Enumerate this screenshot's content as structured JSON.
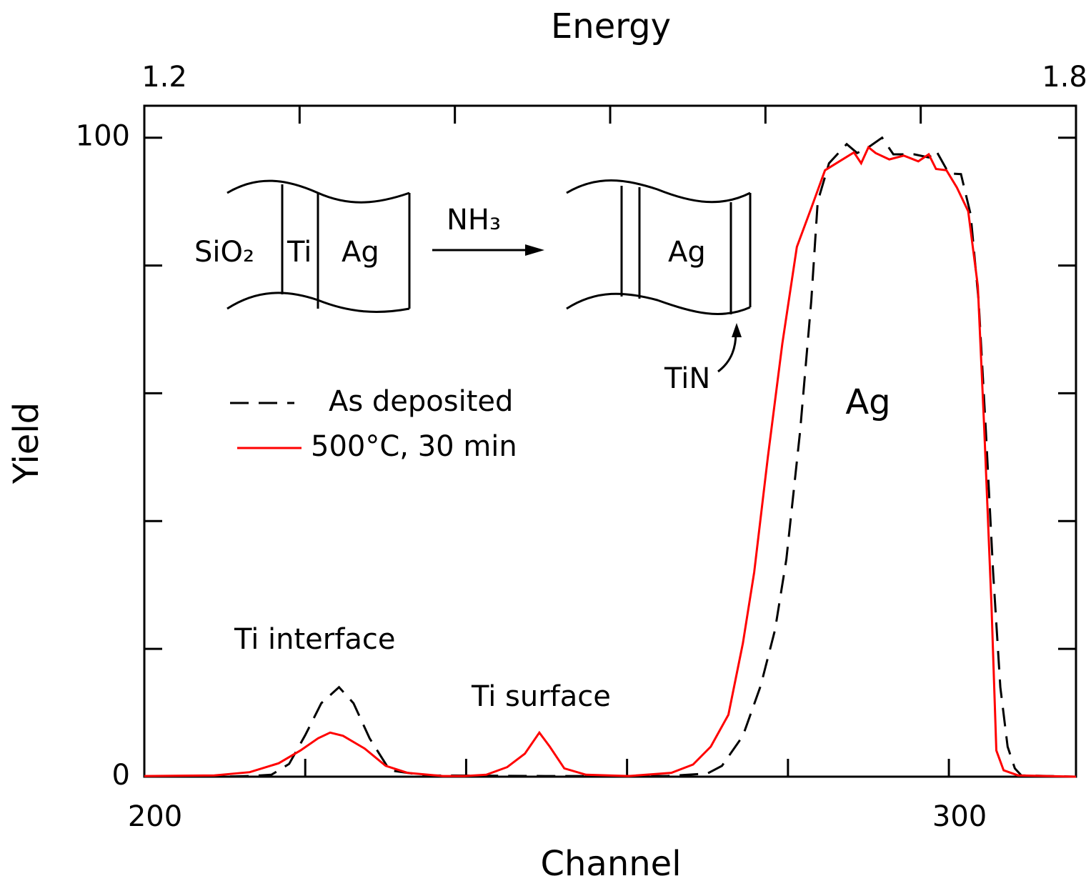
{
  "chart_data": {
    "type": "line",
    "x_label": "Channel",
    "y_label": "Yield",
    "x2_label": "Energy",
    "xlim": [
      200,
      315.8
    ],
    "xticks": [
      200,
      300
    ],
    "xminorticks": [
      220,
      240,
      260,
      280
    ],
    "x2lim": [
      1.2,
      1.8
    ],
    "x2ticks": [
      1.2,
      1.8
    ],
    "x2minorticks": [
      1.3,
      1.4,
      1.5,
      1.6,
      1.7
    ],
    "ylim": [
      0,
      105
    ],
    "yticks": [
      0,
      100
    ],
    "yminorticks": [
      20,
      40,
      60,
      80
    ],
    "series": [
      {
        "name": "As deposited",
        "color": "#000000",
        "dash": true,
        "x": [
          200,
          210,
          213,
          215.8,
          218,
          220,
          222,
          224.2,
          226,
          228,
          230.5,
          235,
          250,
          265,
          270,
          271.8,
          274.4,
          276.6,
          278.4,
          279.8,
          281.5,
          282.9,
          283.7,
          285.1,
          287.3,
          288.6,
          290,
          291.7,
          293.1,
          295.7,
          297.5,
          298.4,
          300,
          301.5,
          302.7,
          303.7,
          304.6,
          305.5,
          306.4,
          307.3,
          308.2,
          309,
          315.8
        ],
        "values": [
          0,
          0,
          0.1,
          0.3,
          2,
          6.5,
          11.5,
          14,
          11.5,
          6,
          1,
          0.2,
          0.1,
          0.1,
          0.5,
          1.7,
          6.4,
          14.2,
          23,
          34,
          54,
          74.5,
          90,
          96,
          99,
          97.6,
          98.5,
          100,
          97.4,
          97.4,
          96.9,
          98,
          94.4,
          94.3,
          88,
          74.5,
          54,
          32,
          14,
          4.7,
          1.3,
          0.2,
          0
        ]
      },
      {
        "name": "500°C, 30 min",
        "color": "#ff0000",
        "dash": false,
        "x": [
          200,
          208.7,
          213.1,
          216.7,
          219.4,
          221.6,
          223.1,
          224.7,
          227.4,
          230,
          232.7,
          237.1,
          239.8,
          242.5,
          245.1,
          247.3,
          249.1,
          250.4,
          252.2,
          254.9,
          260.2,
          265.5,
          268.2,
          270.4,
          272.6,
          274.4,
          275.8,
          277.5,
          279.3,
          281.1,
          282.9,
          284.6,
          286.4,
          288.2,
          289.1,
          290,
          290.9,
          292.6,
          294.4,
          296.2,
          297.5,
          298.4,
          299.7,
          301,
          302.4,
          303.6,
          304.4,
          305.3,
          305.9,
          306.8,
          308.6,
          315.8
        ],
        "values": [
          0.1,
          0.2,
          0.7,
          2.1,
          4.1,
          6,
          6.9,
          6.4,
          4.4,
          1.7,
          0.6,
          0.1,
          0.1,
          0.3,
          1.5,
          3.6,
          6.9,
          4.7,
          1.3,
          0.3,
          0.1,
          0.6,
          1.9,
          4.7,
          9.7,
          20.9,
          32,
          50,
          67.8,
          82.9,
          89,
          94.9,
          96.3,
          97.7,
          96,
          98.5,
          97.6,
          96.6,
          97.2,
          96.3,
          97.4,
          95.1,
          94.9,
          92.2,
          88.5,
          76.8,
          54.4,
          26.5,
          4.1,
          1,
          0.2,
          0
        ]
      }
    ],
    "annotations": [
      "Ti  interface",
      "Ti  surface",
      "Ag"
    ],
    "inset": {
      "before": [
        "SiO₂",
        "Ti",
        "Ag"
      ],
      "reagent": "NH₃",
      "after": "Ag",
      "pointer": "TiN"
    }
  }
}
